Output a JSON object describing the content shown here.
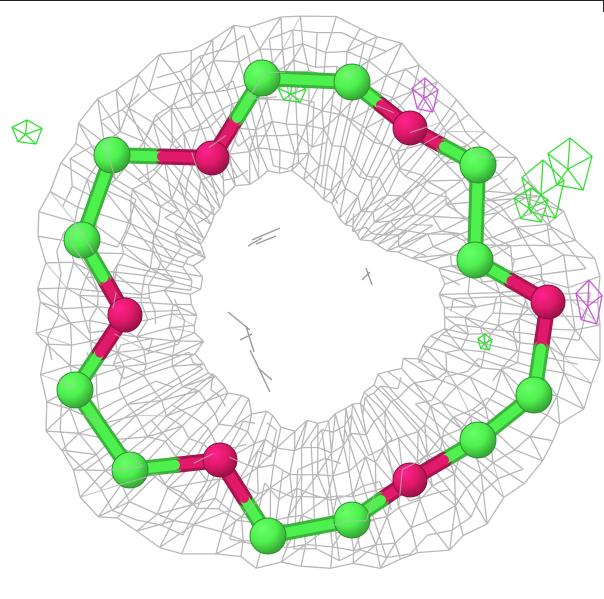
{
  "scene": {
    "background_color": "#ffffff",
    "mesh_color": "#b8b8b8",
    "carbon_color": "#4ef04e",
    "heteroatom_color": "#e0196a",
    "green_density_color": "#35e035",
    "magenta_density_color": "#c85ad6",
    "ring": {
      "atom_count": 18,
      "atoms": [
        "carbon",
        "carbon",
        "heteroatom",
        "carbon",
        "carbon",
        "heteroatom",
        "carbon",
        "carbon",
        "heteroatom",
        "carbon",
        "carbon",
        "heteroatom",
        "carbon",
        "carbon",
        "heteroatom",
        "carbon",
        "carbon",
        "heteroatom"
      ]
    }
  }
}
